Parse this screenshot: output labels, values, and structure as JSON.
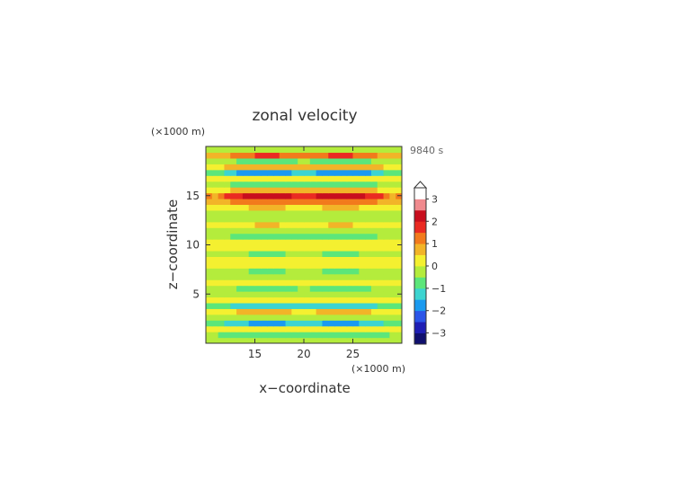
{
  "chart_data": {
    "type": "heatmap",
    "title": "zonal velocity",
    "xlabel": "x−coordinate",
    "ylabel": "z−coordinate",
    "x_unit": "(×1000 m)",
    "y_unit": "(×1000 m)",
    "time_label": "9840 s",
    "xlim": [
      10,
      30
    ],
    "ylim": [
      0,
      20
    ],
    "x_ticks": [
      15,
      20,
      25
    ],
    "y_ticks": [
      5,
      10,
      15
    ],
    "colorbar": {
      "ticks": [
        3,
        2,
        1,
        0,
        -1,
        -2,
        -3
      ],
      "tick_labels": [
        "3",
        "2",
        "1",
        "0",
        "−1",
        "−2",
        "−3"
      ],
      "range": [
        -3.5,
        3.5
      ],
      "colors": [
        "#10106e",
        "#1e1eb4",
        "#2b55e8",
        "#1a9af0",
        "#3cd4d0",
        "#5ce67a",
        "#b4ec3c",
        "#f4f030",
        "#f2b428",
        "#f27a1c",
        "#ea2a22",
        "#c80e1e",
        "#f08a8e",
        "#ffffff"
      ]
    },
    "cross_sections": [
      {
        "x": 13,
        "z": [
          {
            "z": 0.2,
            "u": 0.2
          },
          {
            "z": 0.8,
            "u": -1.2
          },
          {
            "z": 1.5,
            "u": 0.5
          },
          {
            "z": 2.2,
            "u": -2.2
          },
          {
            "z": 3.0,
            "u": 1.5
          },
          {
            "z": 3.8,
            "u": -1.5
          },
          {
            "z": 4.6,
            "u": 0.8
          },
          {
            "z": 5.4,
            "u": -1.0
          },
          {
            "z": 6.3,
            "u": 0.6
          },
          {
            "z": 7.2,
            "u": -0.8
          },
          {
            "z": 8.1,
            "u": 0.7
          },
          {
            "z": 9.0,
            "u": -0.7
          },
          {
            "z": 10.0,
            "u": 0.6
          },
          {
            "z": 11.0,
            "u": -0.9
          },
          {
            "z": 12.0,
            "u": 0.6
          },
          {
            "z": 13.0,
            "u": -0.6
          },
          {
            "z": 14.0,
            "u": 0.8
          },
          {
            "z": 15.2,
            "u": 2.8
          },
          {
            "z": 16.0,
            "u": -1.5
          },
          {
            "z": 16.6,
            "u": 1.2
          },
          {
            "z": 17.2,
            "u": -3.0
          },
          {
            "z": 17.8,
            "u": 1.5
          },
          {
            "z": 18.4,
            "u": -1.2
          },
          {
            "z": 19.1,
            "u": 1.6
          },
          {
            "z": 19.7,
            "u": -0.4
          }
        ]
      }
    ]
  }
}
